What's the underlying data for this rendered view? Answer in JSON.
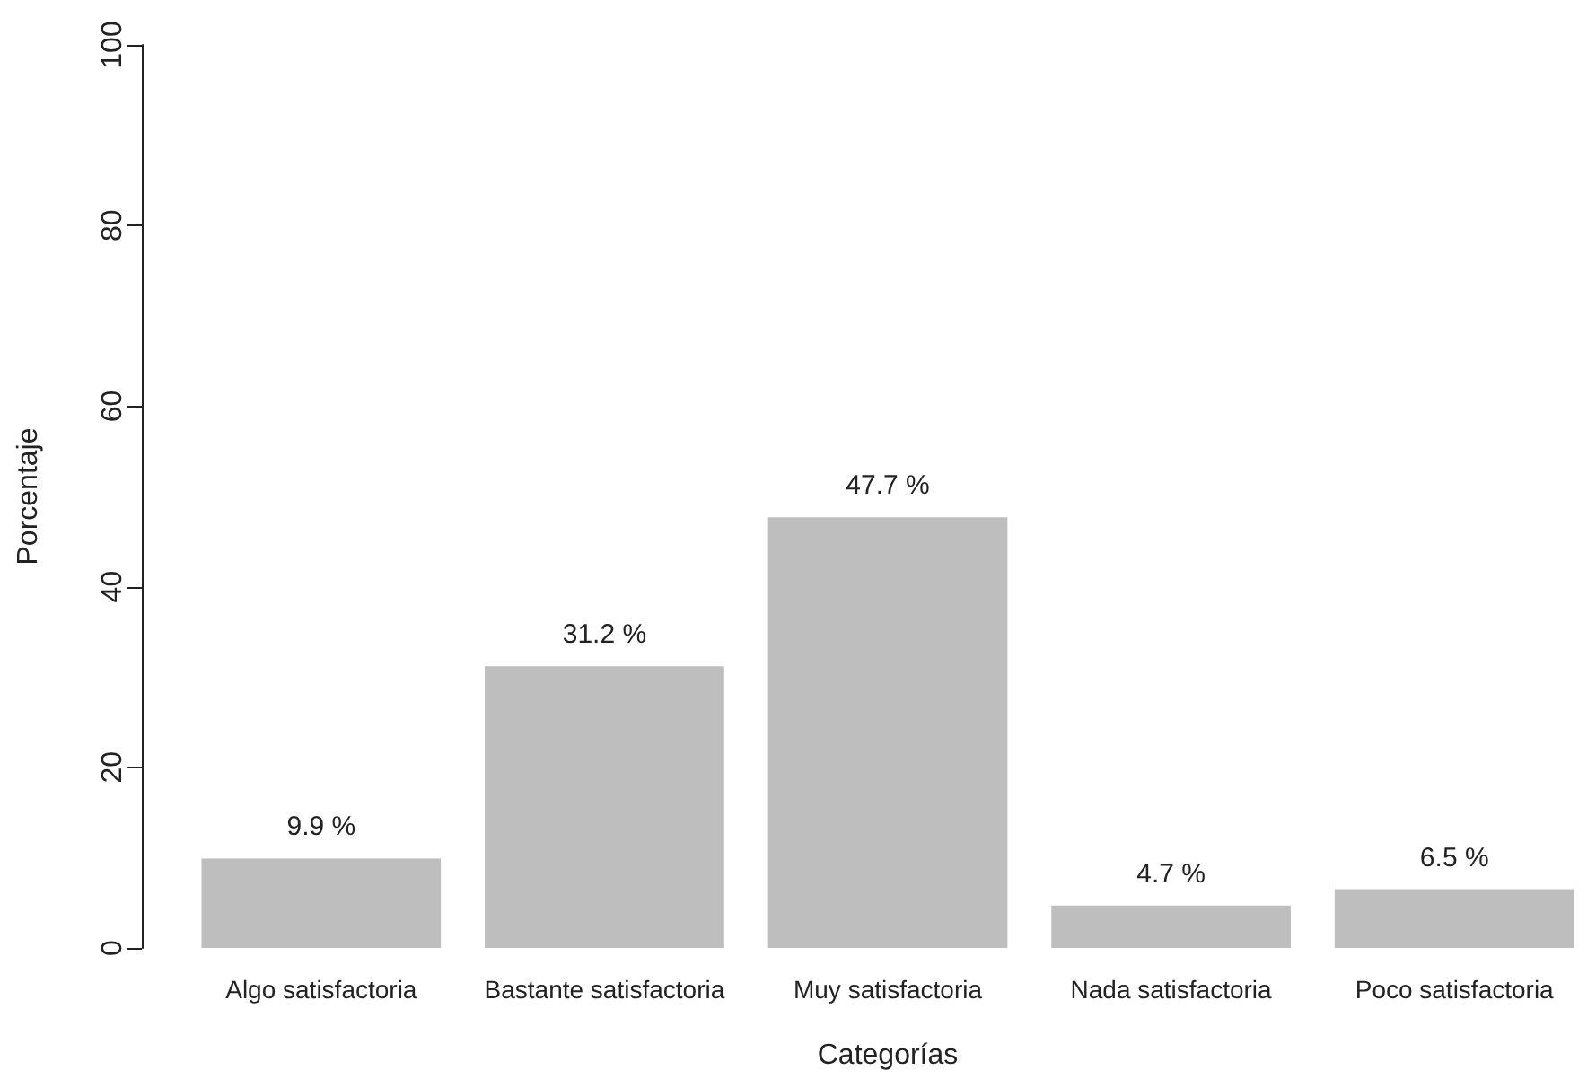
{
  "chart_data": {
    "type": "bar",
    "xlabel": "Categorías",
    "ylabel": "Porcentaje",
    "categories": [
      "Algo satisfactoria",
      "Bastante satisfactoria",
      "Muy satisfactoria",
      "Nada satisfactoria",
      "Poco satisfactoria"
    ],
    "values": [
      9.9,
      31.2,
      47.7,
      4.7,
      6.5
    ],
    "value_labels": [
      "9.9 %",
      "31.2 %",
      "47.7 %",
      "4.7 %",
      "6.5 %"
    ],
    "color": "#bebebe",
    "ylim": [
      0,
      100
    ],
    "yticks": [
      0,
      20,
      40,
      60,
      80,
      100
    ],
    "grid": false
  }
}
